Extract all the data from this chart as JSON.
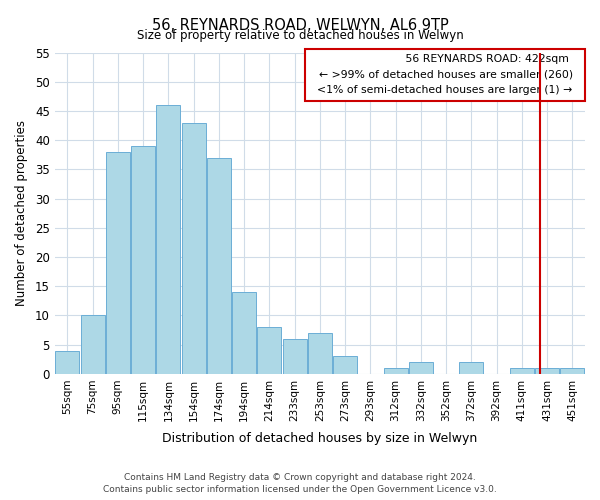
{
  "title": "56, REYNARDS ROAD, WELWYN, AL6 9TP",
  "subtitle": "Size of property relative to detached houses in Welwyn",
  "xlabel": "Distribution of detached houses by size in Welwyn",
  "ylabel": "Number of detached properties",
  "bar_labels": [
    "55sqm",
    "75sqm",
    "95sqm",
    "115sqm",
    "134sqm",
    "154sqm",
    "174sqm",
    "194sqm",
    "214sqm",
    "233sqm",
    "253sqm",
    "273sqm",
    "293sqm",
    "312sqm",
    "332sqm",
    "352sqm",
    "372sqm",
    "392sqm",
    "411sqm",
    "431sqm",
    "451sqm"
  ],
  "bar_values": [
    4,
    10,
    38,
    39,
    46,
    43,
    37,
    14,
    8,
    6,
    7,
    3,
    0,
    1,
    2,
    0,
    2,
    0,
    1,
    1,
    1
  ],
  "bar_color": "#add8e6",
  "bar_edge_color": "#6baed6",
  "ylim": [
    0,
    55
  ],
  "yticks": [
    0,
    5,
    10,
    15,
    20,
    25,
    30,
    35,
    40,
    45,
    50,
    55
  ],
  "vline_x": 18.7,
  "vline_color": "#cc0000",
  "legend_title": "56 REYNARDS ROAD: 422sqm",
  "legend_line1": "← >99% of detached houses are smaller (260)",
  "legend_line2": "<1% of semi-detached houses are larger (1) →",
  "footer_line1": "Contains HM Land Registry data © Crown copyright and database right 2024.",
  "footer_line2": "Contains public sector information licensed under the Open Government Licence v3.0.",
  "plot_background": "#ffffff",
  "grid_color": "#d0dce8"
}
